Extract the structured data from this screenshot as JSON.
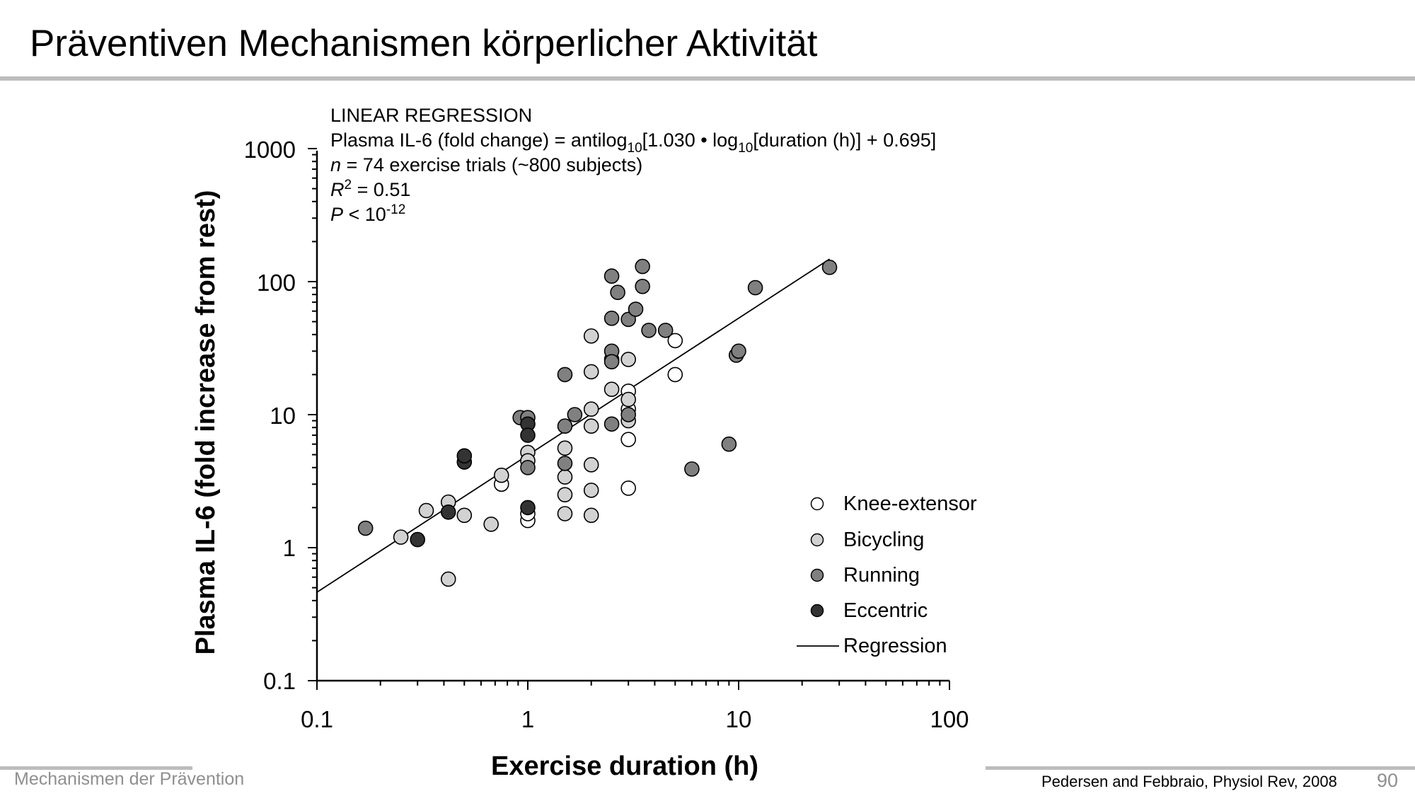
{
  "slide": {
    "title": "Präventiven Mechanismen körperlicher Aktivität",
    "footer_left": "Mechanismen der Prävention",
    "citation": "Pedersen and Febbraio, Physiol Rev, 2008",
    "page_number": "90"
  },
  "colors": {
    "knee_extensor": "#ffffff",
    "bicycling": "#d2d2d2",
    "running": "#808080",
    "eccentric": "#333333",
    "rule": "#bdbdbd"
  },
  "chart_data": {
    "type": "scatter",
    "xlabel": "Exercise duration (h)",
    "ylabel": "Plasma IL-6 (fold increase from rest)",
    "x_scale": "log",
    "y_scale": "log",
    "xlim": [
      0.1,
      100
    ],
    "ylim": [
      0.1,
      1000
    ],
    "x_ticks": [
      "0.1",
      "1",
      "10",
      "100"
    ],
    "y_ticks": [
      "0.1",
      "1",
      "10",
      "100",
      "1000"
    ],
    "grid": false,
    "legend_position": "bottom-right",
    "annotation": {
      "heading": "LINEAR REGRESSION",
      "eq_a": "Plasma IL-6 (fold change) = antilog",
      "eq_sub1": "10",
      "eq_b": "[1.030 • log",
      "eq_sub2": "10",
      "eq_c": "[duration (h)] + 0.695]",
      "n_var": "n",
      "n_text": " = 74 exercise trials (~800 subjects)",
      "r2_var": "R",
      "r2_sup": "2",
      "r2_text": " = 0.51",
      "p_var": "P",
      "p_text": " < 10",
      "p_sup": "-12"
    },
    "regression": {
      "name": "Regression",
      "slope": 1.03,
      "intercept": 0.695,
      "x_range": [
        0.1,
        27
      ]
    },
    "series": [
      {
        "name": "Knee-extensor",
        "points": [
          [
            0.75,
            3.0
          ],
          [
            1.0,
            1.6
          ],
          [
            1.0,
            1.8
          ],
          [
            3.0,
            15.0
          ],
          [
            3.0,
            11.0
          ],
          [
            3.0,
            6.5
          ],
          [
            3.0,
            2.8
          ],
          [
            5.0,
            36.0
          ],
          [
            5.0,
            20.0
          ]
        ]
      },
      {
        "name": "Bicycling",
        "points": [
          [
            0.25,
            1.2
          ],
          [
            0.33,
            1.9
          ],
          [
            0.42,
            2.2
          ],
          [
            0.42,
            0.58
          ],
          [
            0.5,
            1.75
          ],
          [
            0.67,
            1.5
          ],
          [
            0.75,
            3.5
          ],
          [
            1.0,
            5.2
          ],
          [
            1.0,
            4.5
          ],
          [
            1.5,
            5.6
          ],
          [
            1.5,
            3.4
          ],
          [
            1.5,
            2.5
          ],
          [
            1.5,
            1.8
          ],
          [
            2.0,
            39.0
          ],
          [
            2.0,
            21.0
          ],
          [
            2.0,
            11.0
          ],
          [
            2.0,
            8.2
          ],
          [
            2.0,
            4.2
          ],
          [
            2.0,
            2.7
          ],
          [
            2.0,
            1.75
          ],
          [
            2.5,
            26.0
          ],
          [
            2.5,
            15.5
          ],
          [
            3.0,
            26.0
          ],
          [
            3.0,
            13.0
          ],
          [
            3.0,
            9.0
          ]
        ]
      },
      {
        "name": "Running",
        "points": [
          [
            0.17,
            1.4
          ],
          [
            0.92,
            9.5
          ],
          [
            1.0,
            9.5
          ],
          [
            1.0,
            4.0
          ],
          [
            1.5,
            20.0
          ],
          [
            1.5,
            8.2
          ],
          [
            1.5,
            4.3
          ],
          [
            1.67,
            10.0
          ],
          [
            2.5,
            110.0
          ],
          [
            2.5,
            53.0
          ],
          [
            2.5,
            30.0
          ],
          [
            2.5,
            25.0
          ],
          [
            2.5,
            8.5
          ],
          [
            2.67,
            83.0
          ],
          [
            3.0,
            52.0
          ],
          [
            3.0,
            10.0
          ],
          [
            3.25,
            62.0
          ],
          [
            3.5,
            130.0
          ],
          [
            3.5,
            92.0
          ],
          [
            3.75,
            43.0
          ],
          [
            4.5,
            43.0
          ],
          [
            6.0,
            3.9
          ],
          [
            9.0,
            6.0
          ],
          [
            9.75,
            28.0
          ],
          [
            10.0,
            30.0
          ],
          [
            12.0,
            90.0
          ],
          [
            27.0,
            128.0
          ]
        ]
      },
      {
        "name": "Eccentric",
        "points": [
          [
            0.3,
            1.15
          ],
          [
            0.42,
            1.85
          ],
          [
            0.5,
            4.4
          ],
          [
            0.5,
            4.9
          ],
          [
            1.0,
            8.5
          ],
          [
            1.0,
            7.0
          ],
          [
            1.0,
            2.0
          ]
        ]
      }
    ]
  }
}
